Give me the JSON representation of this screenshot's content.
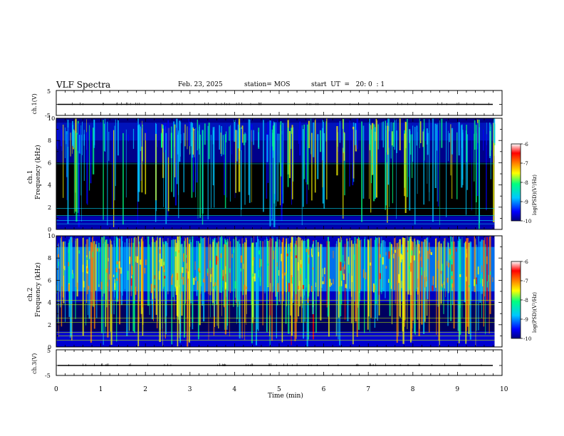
{
  "header": {
    "title": "VLF Spectra",
    "date": "Feb. 23, 2025",
    "station": "station= MOS",
    "start": "start  UT  =   20: 0  : 1"
  },
  "chart_data": [
    {
      "type": "line",
      "panel": "ch1-waveform",
      "ylabel": "ch.1(V)",
      "ylim": [
        -5,
        5
      ],
      "y_ticks": [
        5,
        -5
      ],
      "xlim": [
        0,
        10
      ],
      "series": [
        {
          "values_constant": 0
        }
      ]
    },
    {
      "type": "heatmap",
      "panel": "ch1-spectrogram",
      "ylabel_top": "ch.1",
      "ylabel": "Frequency (kHz)",
      "xlim": [
        0,
        9.83
      ],
      "ylim": [
        0,
        10
      ],
      "y_ticks": [
        0,
        2,
        4,
        6,
        8,
        10
      ],
      "colorbar": {
        "label": "log(PSD)(V²/Hz)",
        "range": [
          -10,
          -6
        ],
        "ticks": [
          "-6",
          "-7",
          "-8",
          "-9",
          "-10"
        ]
      }
    },
    {
      "type": "heatmap",
      "panel": "ch2-spectrogram",
      "ylabel_top": "ch.2",
      "ylabel": "Frequency (kHz)",
      "xlim": [
        0,
        9.83
      ],
      "ylim": [
        0,
        10
      ],
      "y_ticks": [
        0,
        2,
        4,
        6,
        8,
        10
      ],
      "colorbar": {
        "label": "log(PSD)(V²/Hz)",
        "range": [
          -10,
          -6
        ],
        "ticks": [
          "-6",
          "-7",
          "-8",
          "-9",
          "-10"
        ]
      }
    },
    {
      "type": "line",
      "panel": "ch3-waveform",
      "ylabel": "ch.3(V)",
      "ylim": [
        -5,
        5
      ],
      "y_ticks": [
        5,
        -5
      ],
      "xlim": [
        0,
        10
      ],
      "series": [
        {
          "values_constant": 0
        }
      ]
    }
  ],
  "x_axis": {
    "label": "Time (min)",
    "ticks": [
      "0",
      "1",
      "2",
      "3",
      "4",
      "5",
      "6",
      "7",
      "8",
      "9",
      "10"
    ]
  },
  "colors": {
    "background": "#000000",
    "colormap": [
      "#000080",
      "#0000ff",
      "#00c8ff",
      "#00ff80",
      "#ffff00",
      "#ff8000",
      "#ff0000",
      "#ffffff"
    ]
  }
}
